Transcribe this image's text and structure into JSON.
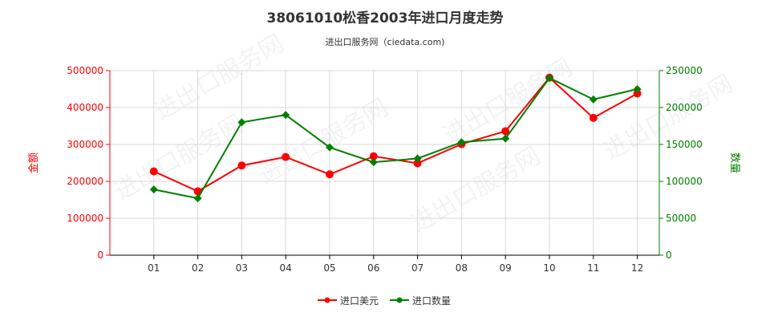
{
  "chart_data": {
    "type": "line",
    "title": "38061010松香2003年进口月度走势",
    "subtitle": "进出口服务网（ciedata.com)",
    "watermark": "进出口服务网",
    "categories": [
      "01",
      "02",
      "03",
      "04",
      "05",
      "06",
      "07",
      "08",
      "09",
      "10",
      "11",
      "12"
    ],
    "y_left": {
      "label": "金额",
      "ticks": [
        "0",
        "100000",
        "200000",
        "300000",
        "400000",
        "500000"
      ],
      "range": [
        0,
        500000
      ],
      "color": "#ff0000"
    },
    "y_right": {
      "label": "数量",
      "ticks": [
        "0",
        "50000",
        "100000",
        "150000",
        "200000",
        "250000"
      ],
      "range": [
        0,
        250000
      ],
      "color": "#008000"
    },
    "grid": true,
    "legend_position": "bottom-center",
    "series": [
      {
        "name": "进口美元",
        "axis": "left",
        "color": "#ff0000",
        "values": [
          227000,
          173000,
          243000,
          266000,
          219000,
          268000,
          249000,
          301000,
          336000,
          481000,
          372000,
          438000
        ]
      },
      {
        "name": "进口数量",
        "axis": "right",
        "color": "#008000",
        "values": [
          89000,
          77000,
          180000,
          190000,
          146000,
          126000,
          131000,
          153000,
          158000,
          240000,
          211000,
          225000
        ]
      }
    ]
  }
}
